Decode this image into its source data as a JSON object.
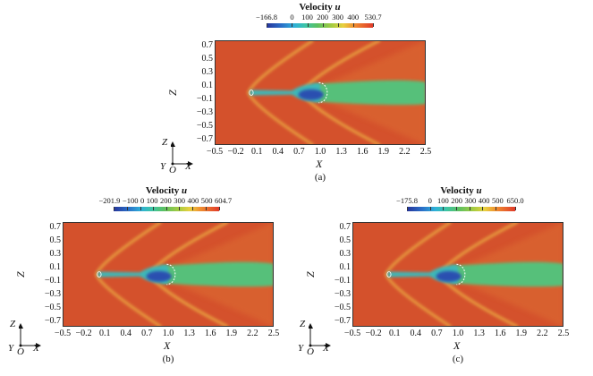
{
  "chart_data": [
    {
      "type": "heatmap",
      "panel_label": "(a)",
      "colorbar": {
        "title": "Velocity",
        "title_var": "u",
        "min": -166.8,
        "max": 530.7,
        "tick_labels": [
          "−166.8",
          "0",
          "100",
          "200",
          "300",
          "400",
          "530.7"
        ],
        "tick_values": [
          -166.8,
          0,
          100,
          200,
          300,
          400,
          530.7
        ]
      },
      "xlabel": "X",
      "ylabel": "Z",
      "xticks": [
        "−0.5",
        "−0.2",
        "0.1",
        "0.4",
        "0.7",
        "1.0",
        "1.3",
        "1.6",
        "1.9",
        "2.2",
        "2.5"
      ],
      "yticks": [
        "0.7",
        "0.5",
        "0.3",
        "0.1",
        "−0.1",
        "−0.3",
        "−0.5",
        "−0.7"
      ],
      "xlim": [
        -0.5,
        2.5
      ],
      "ylim": [
        -0.78,
        0.78
      ],
      "axes_triad": {
        "up": "Z",
        "out": "Y",
        "origin": "O",
        "right": "X"
      }
    },
    {
      "type": "heatmap",
      "panel_label": "(b)",
      "colorbar": {
        "title": "Velocity",
        "title_var": "u",
        "min": -201.9,
        "max": 604.7,
        "tick_labels": [
          "−201.9",
          "−100",
          "0",
          "100",
          "200",
          "300",
          "400",
          "500",
          "604.7"
        ],
        "tick_values": [
          -201.9,
          -100,
          0,
          100,
          200,
          300,
          400,
          500,
          604.7
        ]
      },
      "xlabel": "X",
      "ylabel": "Z",
      "xticks": [
        "−0.5",
        "−0.2",
        "0.1",
        "0.4",
        "0.7",
        "1.0",
        "1.3",
        "1.6",
        "1.9",
        "2.2",
        "2.5"
      ],
      "yticks": [
        "0.7",
        "0.5",
        "0.3",
        "0.1",
        "−0.1",
        "−0.3",
        "−0.5",
        "−0.7"
      ],
      "xlim": [
        -0.5,
        2.5
      ],
      "ylim": [
        -0.78,
        0.78
      ],
      "axes_triad": {
        "up": "Z",
        "out": "Y",
        "origin": "O",
        "right": "X"
      }
    },
    {
      "type": "heatmap",
      "panel_label": "(c)",
      "colorbar": {
        "title": "Velocity",
        "title_var": "u",
        "min": -175.8,
        "max": 650.0,
        "tick_labels": [
          "−175.8",
          "0",
          "100",
          "200",
          "300",
          "400",
          "500",
          "650.0"
        ],
        "tick_values": [
          -175.8,
          0,
          100,
          200,
          300,
          400,
          500,
          650.0
        ]
      },
      "xlabel": "X",
      "ylabel": "Z",
      "xticks": [
        "−0.5",
        "−0.2",
        "0.1",
        "0.4",
        "0.7",
        "1.0",
        "1.3",
        "1.6",
        "1.9",
        "2.2",
        "2.5"
      ],
      "yticks": [
        "0.7",
        "0.5",
        "0.3",
        "0.1",
        "−0.1",
        "−0.3",
        "−0.5",
        "−0.7"
      ],
      "xlim": [
        -0.5,
        2.5
      ],
      "ylim": [
        -0.78,
        0.78
      ],
      "axes_triad": {
        "up": "Z",
        "out": "Y",
        "origin": "O",
        "right": "X"
      }
    }
  ],
  "colors": {
    "freestream": "#d4512c",
    "shock": "#e8a040",
    "jet_core": "#2a4fb0",
    "plume": "#56c07a"
  }
}
